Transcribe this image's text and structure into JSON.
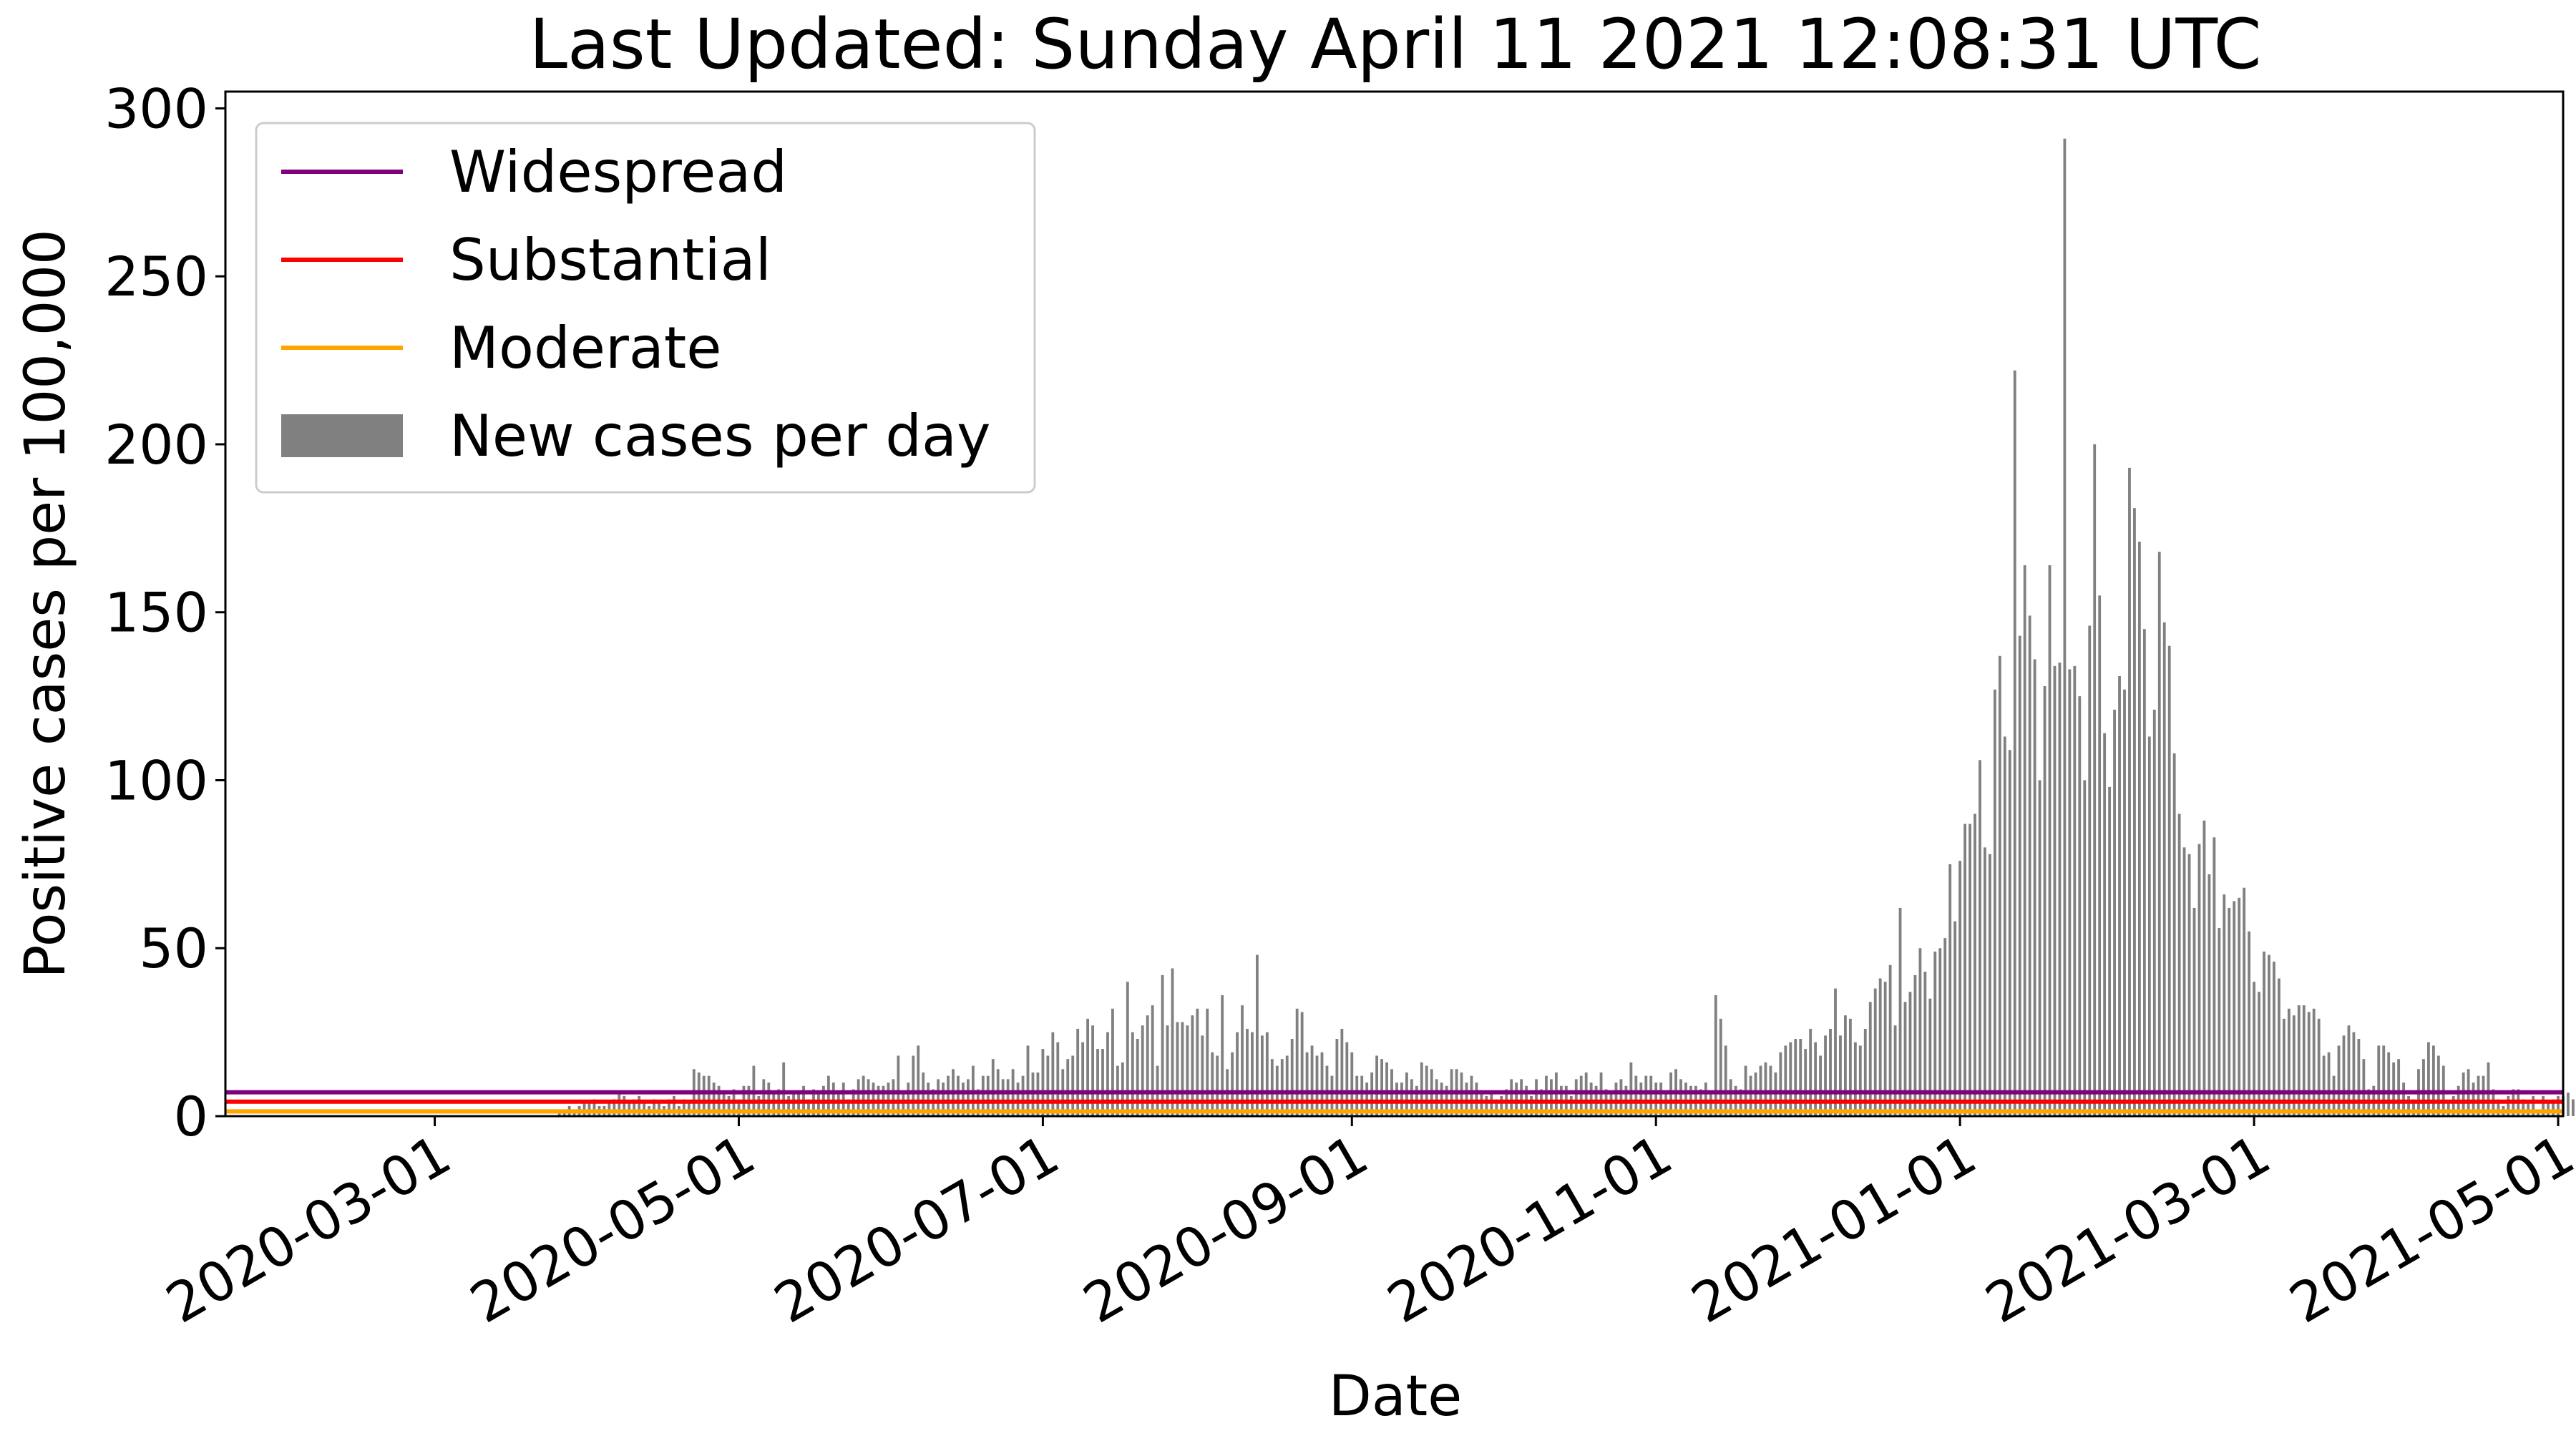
{
  "chart_data": {
    "type": "bar",
    "title": "Last Updated: Sunday April 11 2021 12:08:31 UTC",
    "xlabel": "Date",
    "ylabel": "Positive cases per 100,000",
    "ylim": [
      0,
      305
    ],
    "xlim": [
      "2020-01-19",
      "2021-05-02"
    ],
    "yticks": [
      0,
      50,
      100,
      150,
      200,
      250,
      300
    ],
    "xticks": [
      "2020-03-01",
      "2020-05-01",
      "2020-07-01",
      "2020-09-01",
      "2020-11-01",
      "2021-01-01",
      "2021-03-01",
      "2021-05-01"
    ],
    "grid": false,
    "legend_position": "top-left",
    "thresholds": [
      {
        "name": "Widespread",
        "value": 7.1,
        "color": "#800080"
      },
      {
        "name": "Substantial",
        "value": 4.3,
        "color": "#ff0000"
      },
      {
        "name": "Moderate",
        "value": 1.4,
        "color": "#ffa500"
      }
    ],
    "series": [
      {
        "name": "New cases per day",
        "color": "#808080",
        "start_date": "2020-03-26",
        "values": [
          2,
          1,
          3,
          2,
          3,
          4,
          4,
          5,
          3,
          3,
          4,
          5,
          7,
          6,
          4,
          5,
          6,
          4,
          3,
          5,
          4,
          3,
          5,
          6,
          3,
          5,
          4,
          14,
          13,
          12,
          12,
          10,
          9,
          7,
          6,
          8,
          5,
          9,
          9,
          15,
          6,
          11,
          10,
          7,
          8,
          16,
          6,
          7,
          7,
          9,
          5,
          8,
          7,
          9,
          12,
          10,
          7,
          10,
          5,
          8,
          11,
          12,
          11,
          10,
          9,
          9,
          10,
          11,
          18,
          7,
          10,
          18,
          21,
          13,
          10,
          8,
          11,
          10,
          12,
          14,
          12,
          10,
          11,
          15,
          8,
          12,
          12,
          17,
          14,
          11,
          11,
          14,
          10,
          12,
          21,
          13,
          13,
          20,
          18,
          25,
          22,
          14,
          17,
          18,
          26,
          22,
          29,
          27,
          20,
          20,
          25,
          32,
          15,
          16,
          40,
          25,
          23,
          27,
          30,
          33,
          15,
          42,
          27,
          44,
          28,
          28,
          27,
          30,
          32,
          24,
          32,
          19,
          18,
          36,
          14,
          19,
          25,
          33,
          26,
          25,
          48,
          24,
          25,
          17,
          15,
          17,
          18,
          23,
          32,
          31,
          19,
          21,
          18,
          19,
          15,
          12,
          23,
          26,
          22,
          19,
          12,
          12,
          10,
          13,
          18,
          17,
          16,
          14,
          10,
          10,
          13,
          11,
          9,
          16,
          15,
          14,
          11,
          10,
          9,
          14,
          14,
          13,
          10,
          12,
          10,
          7,
          6,
          7,
          5,
          6,
          8,
          11,
          10,
          11,
          9,
          6,
          11,
          8,
          12,
          11,
          13,
          9,
          9,
          6,
          11,
          12,
          13,
          10,
          9,
          13,
          8,
          7,
          10,
          11,
          9,
          16,
          12,
          10,
          12,
          12,
          10,
          10,
          7,
          13,
          14,
          11,
          10,
          9,
          9,
          8,
          10,
          7,
          36,
          29,
          21,
          11,
          9,
          8,
          15,
          12,
          13,
          15,
          16,
          15,
          13,
          19,
          21,
          22,
          23,
          23,
          20,
          26,
          22,
          18,
          24,
          26,
          38,
          24,
          30,
          29,
          22,
          21,
          26,
          34,
          38,
          41,
          40,
          45,
          27,
          62,
          34,
          37,
          42,
          50,
          43,
          35,
          49,
          50,
          53,
          75,
          58,
          76,
          87,
          87,
          90,
          106,
          80,
          78,
          127,
          137,
          113,
          109,
          222,
          143,
          164,
          149,
          136,
          100,
          128,
          164,
          134,
          135,
          291,
          133,
          134,
          125,
          100,
          146,
          200,
          155,
          114,
          98,
          121,
          131,
          127,
          193,
          181,
          171,
          145,
          113,
          121,
          168,
          147,
          140,
          108,
          90,
          80,
          78,
          62,
          81,
          88,
          72,
          83,
          56,
          66,
          62,
          64,
          65,
          68,
          55,
          40,
          37,
          49,
          48,
          46,
          41,
          29,
          32,
          30,
          33,
          33,
          31,
          32,
          29,
          18,
          19,
          12,
          21,
          24,
          27,
          25,
          23,
          17,
          8,
          9,
          21,
          21,
          19,
          16,
          17,
          10,
          6,
          5,
          14,
          17,
          22,
          21,
          18,
          15,
          4,
          6,
          9,
          13,
          14,
          10,
          12,
          12,
          16,
          8,
          5,
          3,
          6,
          8,
          8,
          5,
          4,
          6,
          2,
          6,
          4,
          5,
          6,
          6,
          7,
          5,
          5,
          4,
          4,
          5,
          3,
          6,
          5,
          4,
          7,
          7
        ]
      }
    ]
  }
}
